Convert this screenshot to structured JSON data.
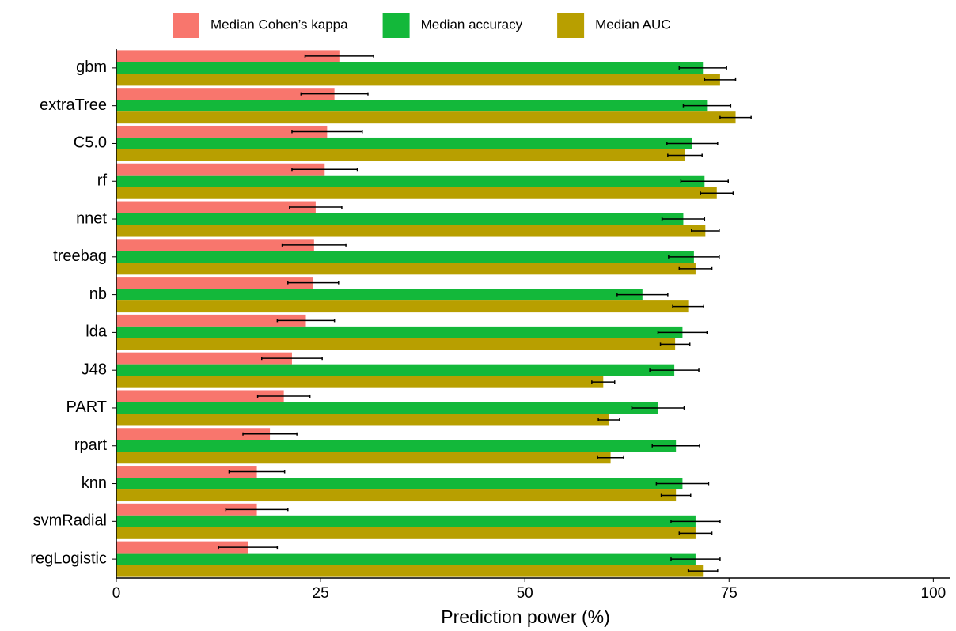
{
  "chart_data": {
    "type": "bar",
    "orientation": "horizontal",
    "x_label": "Prediction power (%)",
    "categories": [
      "gbm",
      "extraTree",
      "C5.0",
      "rf",
      "nnet",
      "treebag",
      "nb",
      "lda",
      "J48",
      "PART",
      "rpart",
      "knn",
      "svmRadial",
      "regLogistic"
    ],
    "series": [
      {
        "name": "Median Cohen’s kappa",
        "color": "#f8766d",
        "values": [
          27.3,
          26.7,
          25.8,
          25.5,
          24.4,
          24.2,
          24.1,
          23.2,
          21.5,
          20.5,
          18.8,
          17.2,
          17.2,
          16.1
        ],
        "errors": [
          4.2,
          4.1,
          4.3,
          4.0,
          3.2,
          3.9,
          3.1,
          3.5,
          3.7,
          3.2,
          3.3,
          3.4,
          3.8,
          3.6
        ]
      },
      {
        "name": "Median accuracy",
        "color": "#13b83a",
        "values": [
          71.8,
          72.3,
          70.5,
          72.0,
          69.4,
          70.7,
          64.4,
          69.3,
          68.3,
          66.3,
          68.5,
          69.3,
          70.9,
          70.9
        ],
        "errors": [
          2.9,
          2.9,
          3.1,
          2.9,
          2.6,
          3.1,
          3.1,
          3.0,
          3.0,
          3.2,
          2.9,
          3.2,
          3.0,
          3.0
        ]
      },
      {
        "name": "Median AUC",
        "color": "#b89f00",
        "values": [
          73.9,
          75.8,
          69.6,
          73.5,
          72.1,
          70.9,
          70.0,
          68.4,
          59.6,
          60.3,
          60.5,
          68.5,
          70.9,
          71.8
        ],
        "errors": [
          1.9,
          1.9,
          2.1,
          2.0,
          1.7,
          2.0,
          1.9,
          1.8,
          1.4,
          1.3,
          1.6,
          1.8,
          2.0,
          1.8
        ]
      }
    ],
    "xlim": [
      0,
      102
    ],
    "xticks": [
      0,
      25,
      50,
      75,
      100
    ],
    "grid": false,
    "legend": "top"
  }
}
